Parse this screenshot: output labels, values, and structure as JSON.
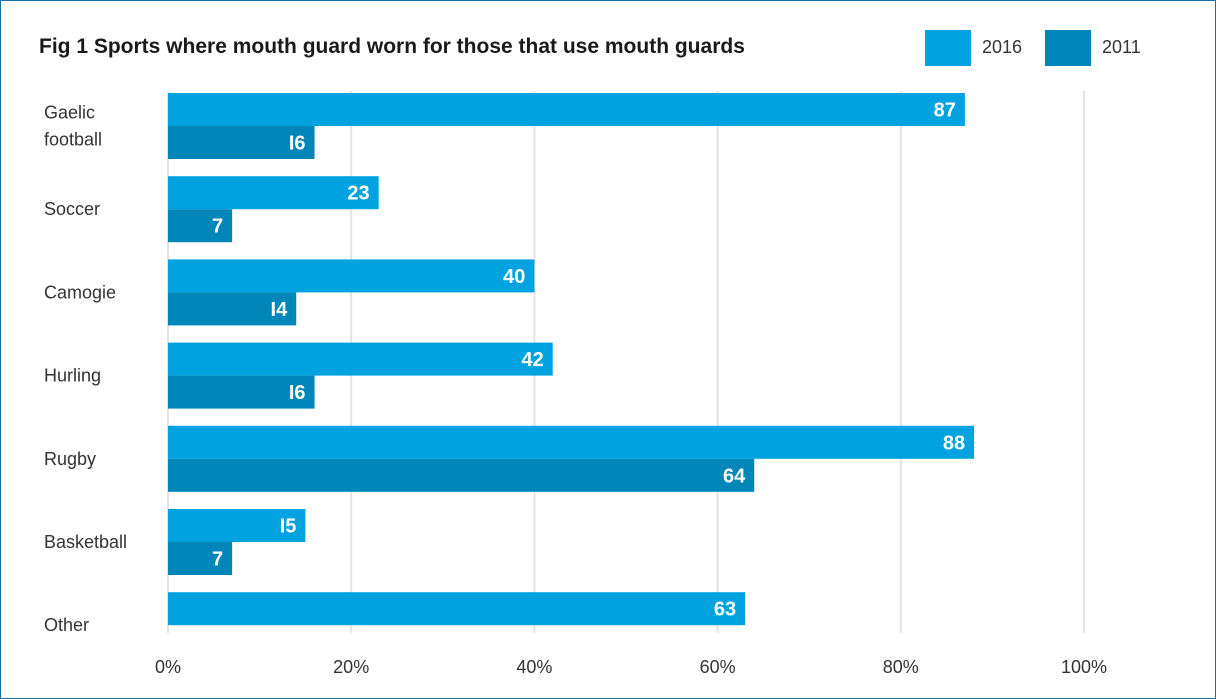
{
  "chart_data": {
    "type": "bar",
    "orientation": "horizontal",
    "title": "Fig 1 Sports where mouth guard worn for those that use mouth guards",
    "categories": [
      [
        "Gaelic",
        "football"
      ],
      [
        "Soccer"
      ],
      [
        "Camogie"
      ],
      [
        "Hurling"
      ],
      [
        "Rugby"
      ],
      [
        "Basketball"
      ],
      [
        "Other"
      ]
    ],
    "series": [
      {
        "name": "2016",
        "color": "#00a3e0",
        "values": [
          87,
          23,
          40,
          42,
          88,
          15,
          63
        ],
        "labels": [
          "87",
          "23",
          "40",
          "42",
          "88",
          "I5",
          "63"
        ]
      },
      {
        "name": "2011",
        "color": "#0086b8",
        "values": [
          16,
          7,
          14,
          16,
          64,
          7,
          null
        ],
        "labels": [
          "I6",
          "7",
          "I4",
          "I6",
          "64",
          "7",
          null
        ]
      }
    ],
    "xlim": [
      0,
      100
    ],
    "xticks": [
      "0%",
      "20%",
      "40%",
      "60%",
      "80%",
      "100%"
    ],
    "grid": true,
    "legend_position": "top-right"
  }
}
